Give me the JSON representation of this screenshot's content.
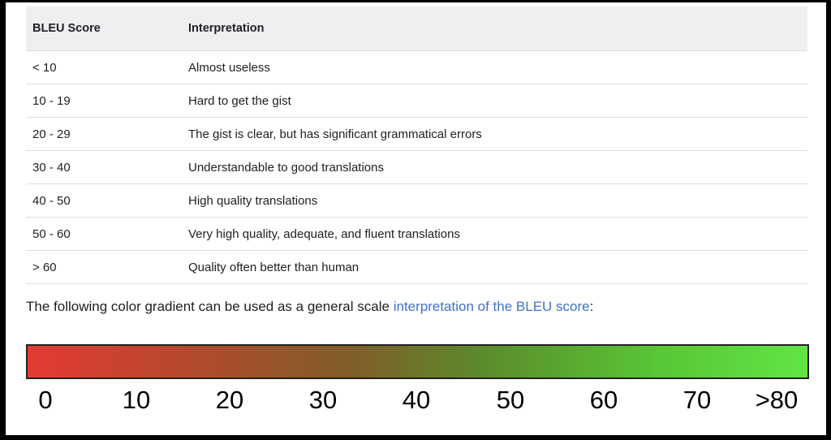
{
  "table": {
    "headers": [
      "BLEU Score",
      "Interpretation"
    ],
    "rows": [
      {
        "score": "< 10",
        "interpretation": "Almost useless"
      },
      {
        "score": "10 - 19",
        "interpretation": "Hard to get the gist"
      },
      {
        "score": "20 - 29",
        "interpretation": "The gist is clear, but has significant grammatical errors"
      },
      {
        "score": "30 - 40",
        "interpretation": "Understandable to good translations"
      },
      {
        "score": "40 - 50",
        "interpretation": "High quality translations"
      },
      {
        "score": "50 - 60",
        "interpretation": "Very high quality, adequate, and fluent translations"
      },
      {
        "score": "> 60",
        "interpretation": "Quality often better than human"
      }
    ]
  },
  "note": {
    "text": "The following color gradient can be used as a general scale",
    "link": "interpretation of the BLEU score",
    "suffix": ":"
  },
  "gradient": {
    "colors": [
      "#e53a34",
      "#7e5f29",
      "#62e445"
    ],
    "labels": [
      "0",
      "10",
      "20",
      "30",
      "40",
      "50",
      "60",
      "70",
      ">80"
    ]
  }
}
